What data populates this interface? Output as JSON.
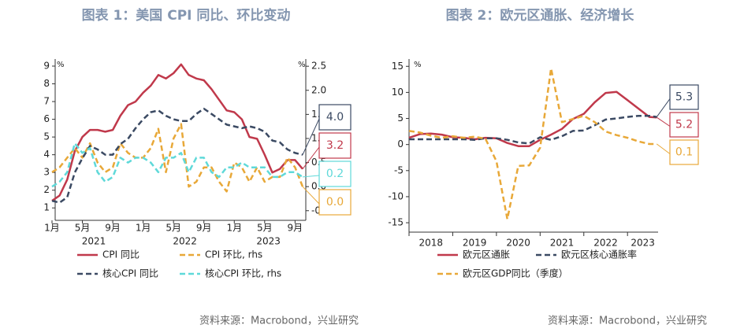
{
  "chart_data": [
    {
      "type": "line",
      "title": "图表 1：美国 CPI 同比、环比变动",
      "y_unit": "%",
      "y2_unit": "%",
      "categories": [
        "1月",
        null,
        null,
        null,
        "5月",
        null,
        null,
        null,
        "9月",
        null,
        null,
        null,
        "1月",
        null,
        null,
        null,
        "5月",
        null,
        null,
        null,
        "9月",
        null,
        null,
        null,
        "1月",
        null,
        null,
        null,
        "5月",
        null,
        null,
        null,
        "9月",
        null
      ],
      "year_labels": [
        "2021",
        "2022",
        "2023"
      ],
      "ylim": [
        0.3,
        9.4
      ],
      "yticks": [
        1,
        2,
        3,
        4,
        5,
        6,
        7,
        8,
        9
      ],
      "y2lim": [
        -0.7,
        2.65
      ],
      "y2ticks": [
        {
          "value": -0.5,
          "label": "-0."
        },
        {
          "value": 0,
          "label": "0.0"
        },
        0.5,
        {
          "value": 1,
          "label": "1.0"
        },
        1.5,
        {
          "value": 2,
          "label": "2.0"
        },
        2.5
      ],
      "series": [
        {
          "name": "CPI 同比",
          "color": "#c0394b",
          "dashed": false,
          "end_label": "3.2",
          "values": [
            1.4,
            1.7,
            2.6,
            4.2,
            5.0,
            5.4,
            5.4,
            5.3,
            5.4,
            6.2,
            6.8,
            7.0,
            7.5,
            7.9,
            8.5,
            8.3,
            8.6,
            9.1,
            8.5,
            8.3,
            8.2,
            7.7,
            7.1,
            6.5,
            6.4,
            6.0,
            5.0,
            4.9,
            4.0,
            3.0,
            3.2,
            3.7,
            3.7,
            3.2
          ]
        },
        {
          "name": "CPI 环比, rhs",
          "color": "#e8a838",
          "dashed": true,
          "axis": "y2",
          "end_label": "0.0",
          "values": [
            0.3,
            0.4,
            0.6,
            0.8,
            0.6,
            0.9,
            0.5,
            0.3,
            0.4,
            0.9,
            0.7,
            0.6,
            0.6,
            0.8,
            1.2,
            0.3,
            1.0,
            1.3,
            0.0,
            0.1,
            0.4,
            0.4,
            0.1,
            -0.1,
            0.5,
            0.4,
            0.1,
            0.4,
            0.1,
            0.2,
            0.2,
            0.6,
            0.4,
            0.0
          ]
        },
        {
          "name": "核心CPI 同比",
          "color": "#3b4a63",
          "dashed": true,
          "end_label": "4.0",
          "values": [
            1.4,
            1.3,
            1.6,
            3.0,
            3.8,
            4.5,
            4.3,
            4.0,
            4.0,
            4.6,
            4.9,
            5.5,
            6.0,
            6.4,
            6.5,
            6.2,
            6.0,
            5.9,
            5.9,
            6.3,
            6.6,
            6.3,
            6.0,
            5.7,
            5.6,
            5.5,
            5.6,
            5.5,
            5.3,
            4.8,
            4.7,
            4.3,
            4.1,
            4.0
          ]
        },
        {
          "name": "核心CPI 环比, rhs",
          "color": "#5fd9d9",
          "dashed": true,
          "axis": "y2",
          "end_label": "0.2",
          "values": [
            0.0,
            0.1,
            0.3,
            0.9,
            0.7,
            0.8,
            0.3,
            0.1,
            0.2,
            0.6,
            0.5,
            0.6,
            0.6,
            0.5,
            0.3,
            0.6,
            0.6,
            0.7,
            0.3,
            0.6,
            0.6,
            0.3,
            0.2,
            0.4,
            0.4,
            0.5,
            0.4,
            0.4,
            0.4,
            0.2,
            0.2,
            0.3,
            0.3,
            0.2
          ]
        }
      ],
      "source": "资料来源：Macrobond，兴业研究"
    },
    {
      "type": "line",
      "title": "图表 2：欧元区通胀、经济增长",
      "y_unit": "%",
      "x": [
        2018,
        2018.25,
        2018.5,
        2018.75,
        2019,
        2019.25,
        2019.5,
        2019.75,
        2020,
        2020.25,
        2020.5,
        2020.75,
        2021,
        2021.25,
        2021.5,
        2021.75,
        2022,
        2022.25,
        2022.5,
        2022.75,
        2023,
        2023.25,
        2023.5,
        2023.67
      ],
      "xlim": [
        2018,
        2023.7
      ],
      "xticks": [
        2018,
        2019,
        2020,
        2021,
        2022,
        2023
      ],
      "ylim": [
        -16.8,
        16.4
      ],
      "yticks": [
        -15,
        -10,
        -5,
        0,
        5,
        10,
        15
      ],
      "series": [
        {
          "name": "欧元区通胀",
          "color": "#c0394b",
          "dashed": false,
          "end_label": "5.2",
          "values": [
            1.3,
            2.0,
            2.1,
            1.9,
            1.4,
            1.3,
            1.0,
            1.3,
            1.2,
            0.3,
            -0.3,
            -0.3,
            0.9,
            1.9,
            3.0,
            4.9,
            5.9,
            8.1,
            9.9,
            10.1,
            8.5,
            6.9,
            5.3,
            5.2
          ]
        },
        {
          "name": "欧元区核心通胀率",
          "color": "#3b4a63",
          "dashed": true,
          "end_label": "5.3",
          "values": [
            1.0,
            1.0,
            1.0,
            1.0,
            1.0,
            1.0,
            0.9,
            1.2,
            1.2,
            0.9,
            0.4,
            0.2,
            1.4,
            0.9,
            1.6,
            2.6,
            2.7,
            3.7,
            4.8,
            5.0,
            5.3,
            5.5,
            5.5,
            5.3
          ]
        },
        {
          "name": "欧元区GDP同比（季度）",
          "color": "#e8a838",
          "dashed": true,
          "end_label": "0.1",
          "values": [
            2.6,
            2.3,
            1.7,
            1.3,
            1.6,
            1.3,
            1.5,
            1.1,
            -3.2,
            -14.3,
            -4.1,
            -4.0,
            -0.6,
            14.6,
            4.3,
            4.9,
            5.5,
            4.3,
            2.5,
            1.8,
            1.3,
            0.6,
            0.1,
            0.1
          ]
        }
      ],
      "source": "资料来源：Macrobond，兴业研究"
    }
  ]
}
